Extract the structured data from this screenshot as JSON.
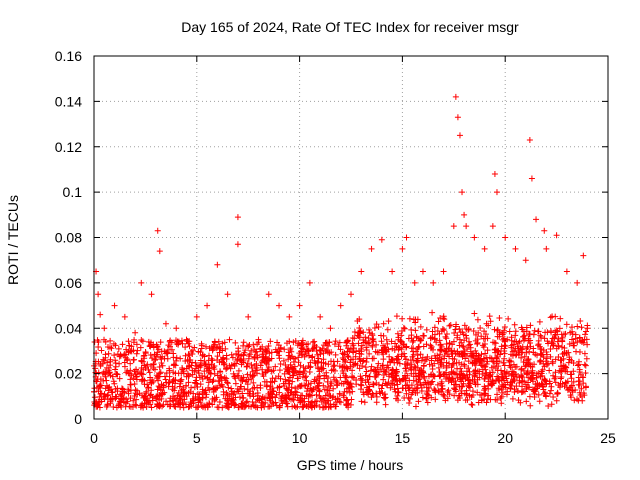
{
  "chart_data": {
    "type": "scatter",
    "title": "Day 165 of 2024, Rate Of TEC Index for receiver msgr",
    "xlabel": "GPS time / hours",
    "ylabel": "ROTI / TECUs",
    "xlim": [
      0,
      25
    ],
    "ylim": [
      0,
      0.16
    ],
    "x_ticks": [
      0,
      5,
      10,
      15,
      20,
      25
    ],
    "x_tick_labels": [
      "0",
      "5",
      "10",
      "15",
      "20",
      "25"
    ],
    "y_ticks": [
      0,
      0.02,
      0.04,
      0.06,
      0.08,
      0.1,
      0.12,
      0.14,
      0.16
    ],
    "y_tick_labels": [
      "0",
      "0.02",
      "0.04",
      "0.06",
      "0.08",
      "0.1",
      "0.12",
      "0.14",
      "0.16"
    ],
    "grid": true,
    "marker": "+",
    "series_color": "#ff0000",
    "series": [
      {
        "name": "ROTI",
        "x": [
          0.1,
          0.2,
          0.3,
          0.5,
          1.0,
          1.5,
          2.0,
          2.3,
          2.8,
          3.1,
          3.2,
          3.5,
          4.0,
          4.5,
          5.0,
          5.5,
          6.0,
          6.5,
          7.0,
          7.0,
          7.5,
          8.0,
          8.5,
          9.0,
          9.5,
          10.0,
          10.5,
          11.0,
          11.5,
          12.0,
          12.5,
          13.0,
          13.5,
          14.0,
          14.5,
          15.0,
          15.2,
          15.6,
          16.0,
          16.5,
          17.0,
          17.5,
          17.6,
          17.7,
          17.8,
          17.9,
          18.0,
          18.1,
          18.5,
          19.0,
          19.4,
          19.5,
          19.6,
          20.0,
          20.5,
          21.0,
          21.2,
          21.3,
          21.5,
          21.9,
          22.0,
          22.5,
          23.0,
          23.5,
          23.8,
          24.0
        ],
        "y": [
          0.065,
          0.055,
          0.046,
          0.04,
          0.05,
          0.045,
          0.038,
          0.06,
          0.055,
          0.083,
          0.074,
          0.042,
          0.04,
          0.035,
          0.045,
          0.05,
          0.068,
          0.055,
          0.089,
          0.077,
          0.045,
          0.035,
          0.055,
          0.05,
          0.045,
          0.05,
          0.06,
          0.045,
          0.04,
          0.05,
          0.055,
          0.065,
          0.075,
          0.079,
          0.065,
          0.075,
          0.08,
          0.06,
          0.065,
          0.06,
          0.065,
          0.085,
          0.142,
          0.133,
          0.125,
          0.1,
          0.09,
          0.085,
          0.08,
          0.075,
          0.085,
          0.108,
          0.1,
          0.08,
          0.075,
          0.07,
          0.123,
          0.106,
          0.088,
          0.083,
          0.075,
          0.081,
          0.065,
          0.06,
          0.072,
          0.04
        ],
        "baseline_range": [
          0.005,
          0.035
        ]
      }
    ]
  }
}
